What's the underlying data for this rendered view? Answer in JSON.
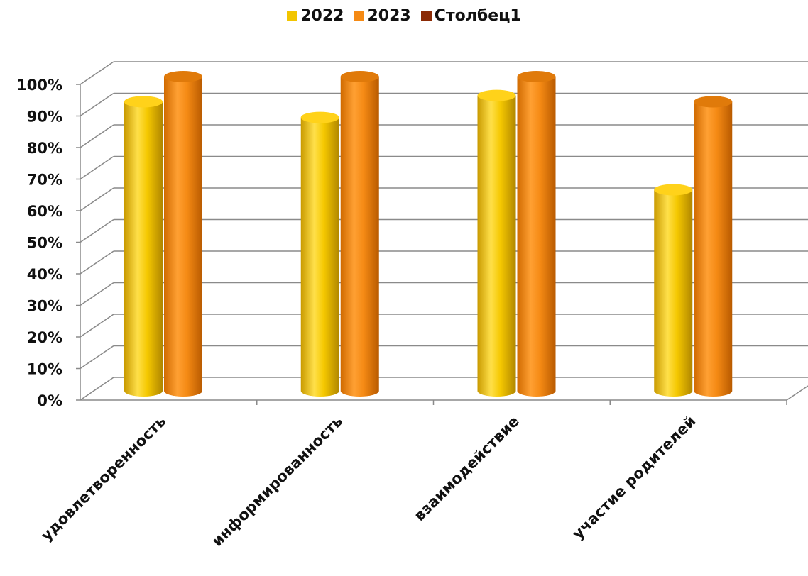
{
  "chart_data": {
    "type": "bar",
    "title": "",
    "xlabel": "",
    "ylabel": "",
    "categories": [
      "удовлетворенность",
      "информированность",
      "взаимодействие",
      "участие родителей"
    ],
    "series": [
      {
        "name": "2022",
        "color": "#F2C500",
        "values": [
          92,
          87,
          94,
          64
        ]
      },
      {
        "name": "2023",
        "color": "#F58A14",
        "values": [
          100,
          100,
          100,
          92
        ]
      },
      {
        "name": "Столбец1",
        "color": "#8B2A05",
        "values": [
          null,
          null,
          null,
          null
        ]
      }
    ],
    "ylim": [
      0,
      100
    ],
    "yticks": [
      "0%",
      "10%",
      "20%",
      "30%",
      "40%",
      "50%",
      "60%",
      "70%",
      "80%",
      "90%",
      "100%"
    ],
    "grid": true,
    "legend_position": "top",
    "style": "3d-cylinder"
  }
}
